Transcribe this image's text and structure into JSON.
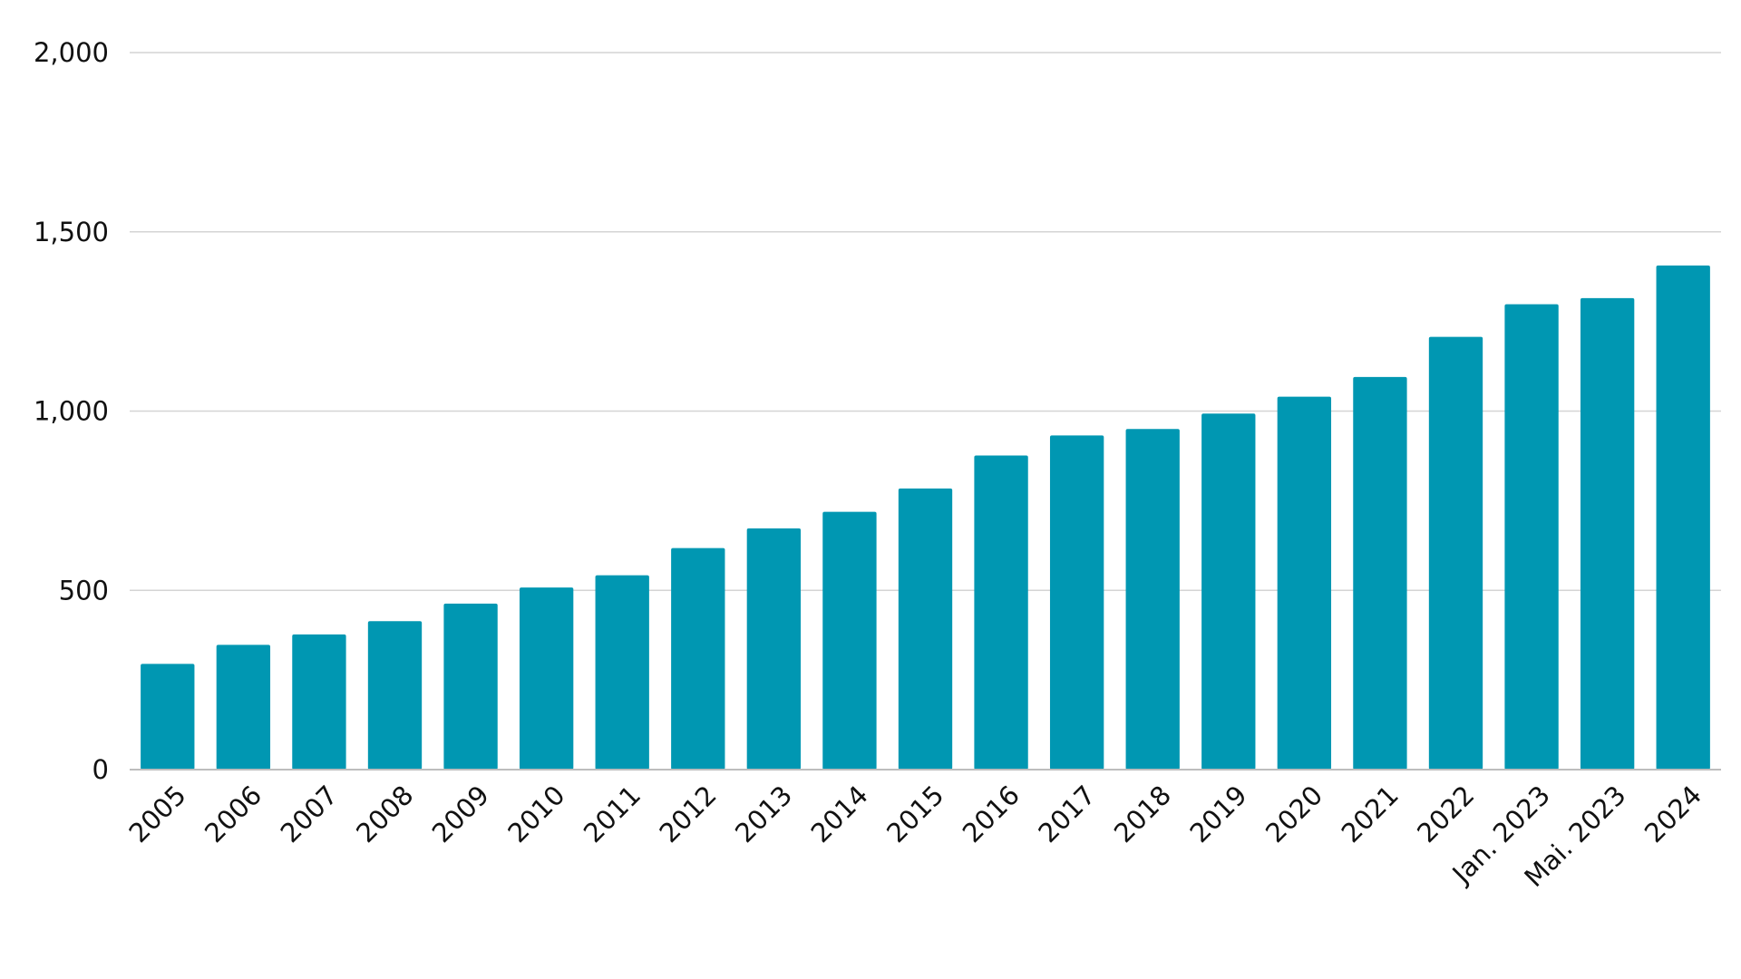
{
  "chart_data": {
    "type": "bar",
    "title": "",
    "xlabel": "",
    "ylabel": "",
    "categories": [
      "2005",
      "2006",
      "2007",
      "2008",
      "2009",
      "2010",
      "2011",
      "2012",
      "2013",
      "2014",
      "2015",
      "2016",
      "2017",
      "2018",
      "2019",
      "2020",
      "2021",
      "2022",
      "Jan. 2023",
      "Mai. 2023",
      "2024"
    ],
    "values": [
      295,
      348,
      377,
      414,
      463,
      508,
      542,
      618,
      673,
      719,
      784,
      876,
      932,
      950,
      993,
      1040,
      1095,
      1207,
      1298,
      1315,
      1406
    ],
    "ylim": [
      0,
      2000
    ],
    "yticks": [
      0,
      500,
      1000,
      1500,
      2000
    ],
    "ytick_labels": [
      "0",
      "500",
      "1,000",
      "1,500",
      "2,000"
    ],
    "bar_color": "#0097b2",
    "grid": true,
    "legend": "none"
  }
}
